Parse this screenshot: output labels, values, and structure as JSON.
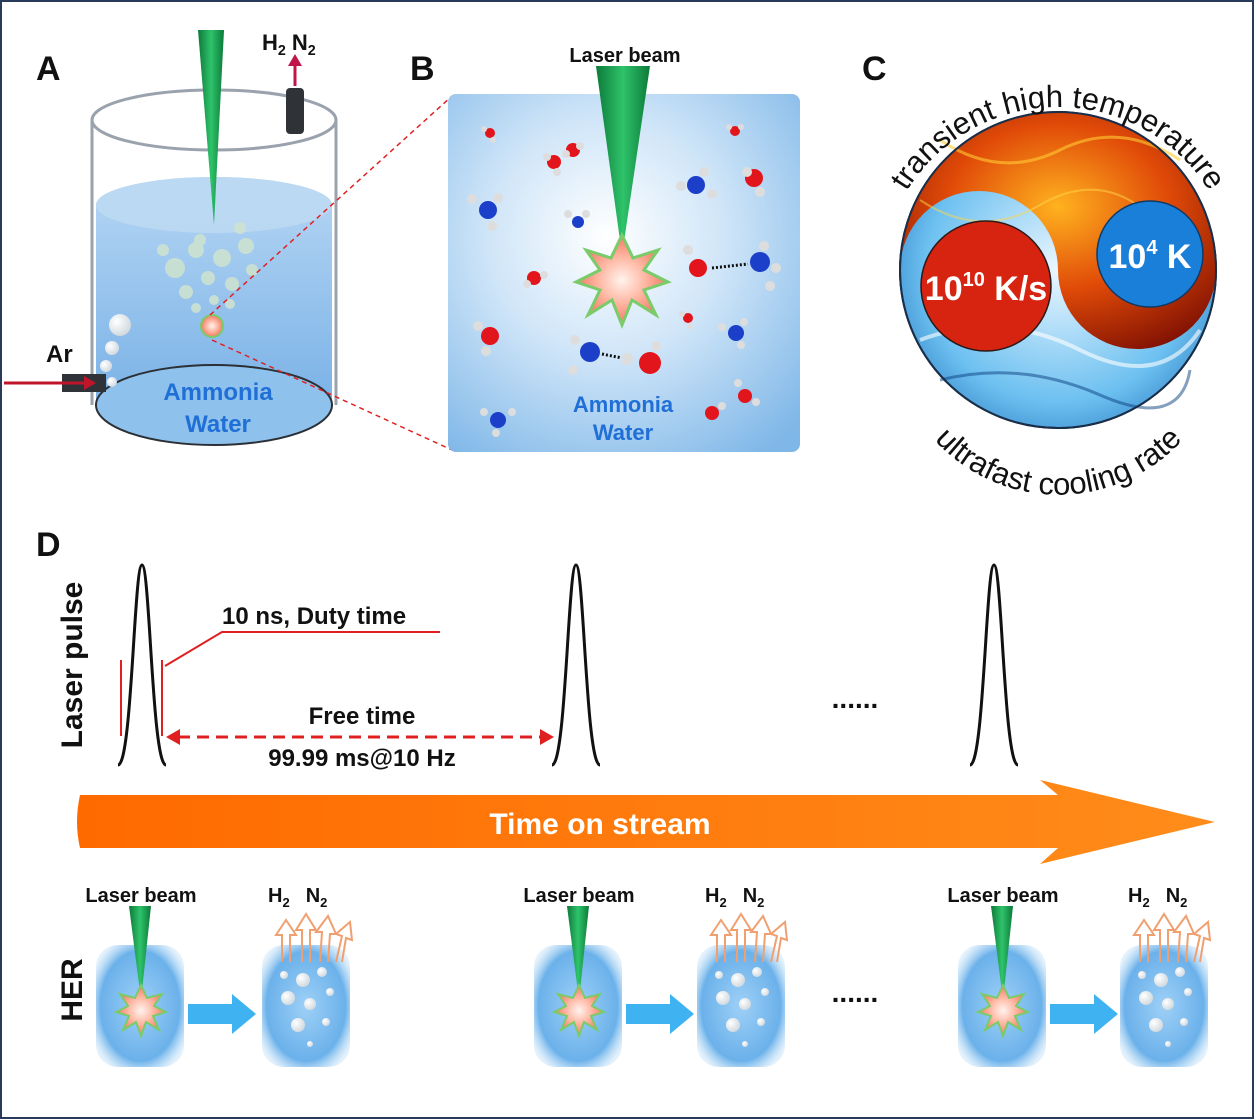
{
  "panels": {
    "a": {
      "letter": "A",
      "gas_h": "H",
      "gas_h_sub": "2",
      "gas_n": "N",
      "gas_n_sub": "2",
      "ar": "Ar",
      "water_line1": "Ammonia",
      "water_line2": "Water"
    },
    "b": {
      "letter": "B",
      "laser": "Laser beam",
      "water_line1": "Ammonia",
      "water_line2": "Water"
    },
    "c": {
      "letter": "C",
      "top_arc": "transient high temperature",
      "bottom_arc": "ultrafast cooling rate",
      "rate_base": "10",
      "rate_exp": "10",
      "rate_unit": " K/s",
      "temp_base": "10",
      "temp_exp": "4",
      "temp_unit": " K"
    },
    "d": {
      "letter": "D",
      "ylabel": "Laser pulse",
      "duty": "10 ns, Duty time",
      "free": "Free time",
      "freq": "99.99 ms@10 Hz",
      "ellipsis": "......",
      "stream": "Time on stream",
      "her": "HER",
      "laser": "Laser beam",
      "gas_h": "H",
      "gas_h_sub": "2",
      "gas_n": "N",
      "gas_n_sub": "2"
    }
  },
  "colors": {
    "green_beam": "#1a9e50",
    "water_blue": "#5aa9e6",
    "arrow_orange": "#ff7a00",
    "hot_red": "#d4200c",
    "cold_blue": "#1a7fd9",
    "dashed_red": "#e02020"
  }
}
